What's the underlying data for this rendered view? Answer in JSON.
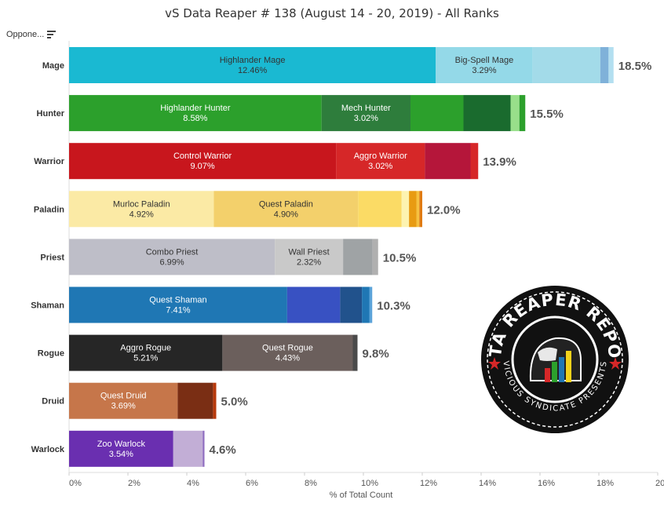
{
  "title": "vS Data Reaper # 138 (August 14 - 20, 2019) - All Ranks",
  "filter": {
    "label": "Oppone...",
    "icon": "sort-icon"
  },
  "badge": {
    "text_top": "DATA REAPER REPORT",
    "text_bottom": "VICIOUS SYNDICATE PRESENTS",
    "icon": "reaper-logo"
  },
  "chart_data": {
    "type": "bar",
    "orientation": "horizontal",
    "stacked": true,
    "xlabel": "% of Total Count",
    "xlim": [
      0,
      20
    ],
    "x_ticks": [
      "0%",
      "2%",
      "4%",
      "6%",
      "8%",
      "10%",
      "12%",
      "14%",
      "16%",
      "18%",
      "20%"
    ],
    "grid": false,
    "classes": [
      {
        "name": "Mage",
        "total_label": "18.5%",
        "segments": [
          {
            "label": "Highlander Mage",
            "value": 12.46,
            "value_label": "12.46%",
            "color": "#1ab9d2",
            "text": "dark"
          },
          {
            "label": "Big-Spell Mage",
            "value": 3.29,
            "value_label": "3.29%",
            "color": "#94d9e8",
            "text": "dark"
          },
          {
            "value": 2.3,
            "color": "#a3dbe9"
          },
          {
            "value": 0.28,
            "color": "#7fb1d9"
          },
          {
            "value": 0.17,
            "color": "#b3dff0"
          }
        ]
      },
      {
        "name": "Hunter",
        "total_label": "15.5%",
        "segments": [
          {
            "label": "Highlander Hunter",
            "value": 8.58,
            "value_label": "8.58%",
            "color": "#2ca02c",
            "text": "light"
          },
          {
            "label": "Mech Hunter",
            "value": 3.02,
            "value_label": "3.02%",
            "color": "#2e7d3c",
            "text": "light"
          },
          {
            "value": 1.8,
            "color": "#2ca02c"
          },
          {
            "value": 1.6,
            "color": "#1a6b2e"
          },
          {
            "value": 0.3,
            "color": "#98df8a"
          },
          {
            "value": 0.2,
            "color": "#2ca02c"
          }
        ]
      },
      {
        "name": "Warrior",
        "total_label": "13.9%",
        "segments": [
          {
            "label": "Control Warrior",
            "value": 9.07,
            "value_label": "9.07%",
            "color": "#c8161d",
            "text": "light"
          },
          {
            "label": "Aggro Warrior",
            "value": 3.02,
            "value_label": "3.02%",
            "color": "#d62728",
            "text": "light"
          },
          {
            "value": 1.55,
            "color": "#b5163a"
          },
          {
            "value": 0.26,
            "color": "#d62728"
          }
        ]
      },
      {
        "name": "Paladin",
        "total_label": "12.0%",
        "segments": [
          {
            "label": "Murloc Paladin",
            "value": 4.92,
            "value_label": "4.92%",
            "color": "#fbeaa5",
            "text": "dark"
          },
          {
            "label": "Quest Paladin",
            "value": 4.9,
            "value_label": "4.90%",
            "color": "#f3d06b",
            "text": "dark"
          },
          {
            "value": 1.48,
            "color": "#fbdb65"
          },
          {
            "value": 0.25,
            "color": "#fdf3b0"
          },
          {
            "value": 0.25,
            "color": "#e89b12"
          },
          {
            "value": 0.1,
            "color": "#f6c141"
          },
          {
            "value": 0.1,
            "color": "#e07b10"
          }
        ]
      },
      {
        "name": "Priest",
        "total_label": "10.5%",
        "segments": [
          {
            "label": "Combo Priest",
            "value": 6.99,
            "value_label": "6.99%",
            "color": "#bebec8",
            "text": "dark"
          },
          {
            "label": "Wall Priest",
            "value": 2.32,
            "value_label": "2.32%",
            "color": "#c9c9c9",
            "text": "dark"
          },
          {
            "value": 1.0,
            "color": "#9fa3a5"
          },
          {
            "value": 0.19,
            "color": "#b0b0b0"
          }
        ]
      },
      {
        "name": "Shaman",
        "total_label": "10.3%",
        "segments": [
          {
            "label": "Quest Shaman",
            "value": 7.41,
            "value_label": "7.41%",
            "color": "#1f77b4",
            "text": "light"
          },
          {
            "value": 1.8,
            "color": "#3851c2"
          },
          {
            "value": 0.74,
            "color": "#21528c"
          },
          {
            "value": 0.25,
            "color": "#1f77b4"
          },
          {
            "value": 0.1,
            "color": "#5ba3d9"
          }
        ]
      },
      {
        "name": "Rogue",
        "total_label": "9.8%",
        "segments": [
          {
            "label": "Aggro Rogue",
            "value": 5.21,
            "value_label": "5.21%",
            "color": "#262626",
            "text": "light"
          },
          {
            "label": "Quest Rogue",
            "value": 4.43,
            "value_label": "4.43%",
            "color": "#6b5f5c",
            "text": "light"
          },
          {
            "value": 0.16,
            "color": "#4a4a4a"
          }
        ]
      },
      {
        "name": "Druid",
        "total_label": "5.0%",
        "segments": [
          {
            "label": "Quest Druid",
            "value": 3.69,
            "value_label": "3.69%",
            "color": "#c6764a",
            "text": "light"
          },
          {
            "value": 1.2,
            "color": "#7a2e14"
          },
          {
            "value": 0.11,
            "color": "#b83a0c"
          }
        ]
      },
      {
        "name": "Warlock",
        "total_label": "4.6%",
        "segments": [
          {
            "label": "Zoo Warlock",
            "value": 3.54,
            "value_label": "3.54%",
            "color": "#6a2fb0",
            "text": "light"
          },
          {
            "value": 1.0,
            "color": "#c2aed6"
          },
          {
            "value": 0.06,
            "color": "#8e6bbf"
          }
        ]
      }
    ]
  }
}
